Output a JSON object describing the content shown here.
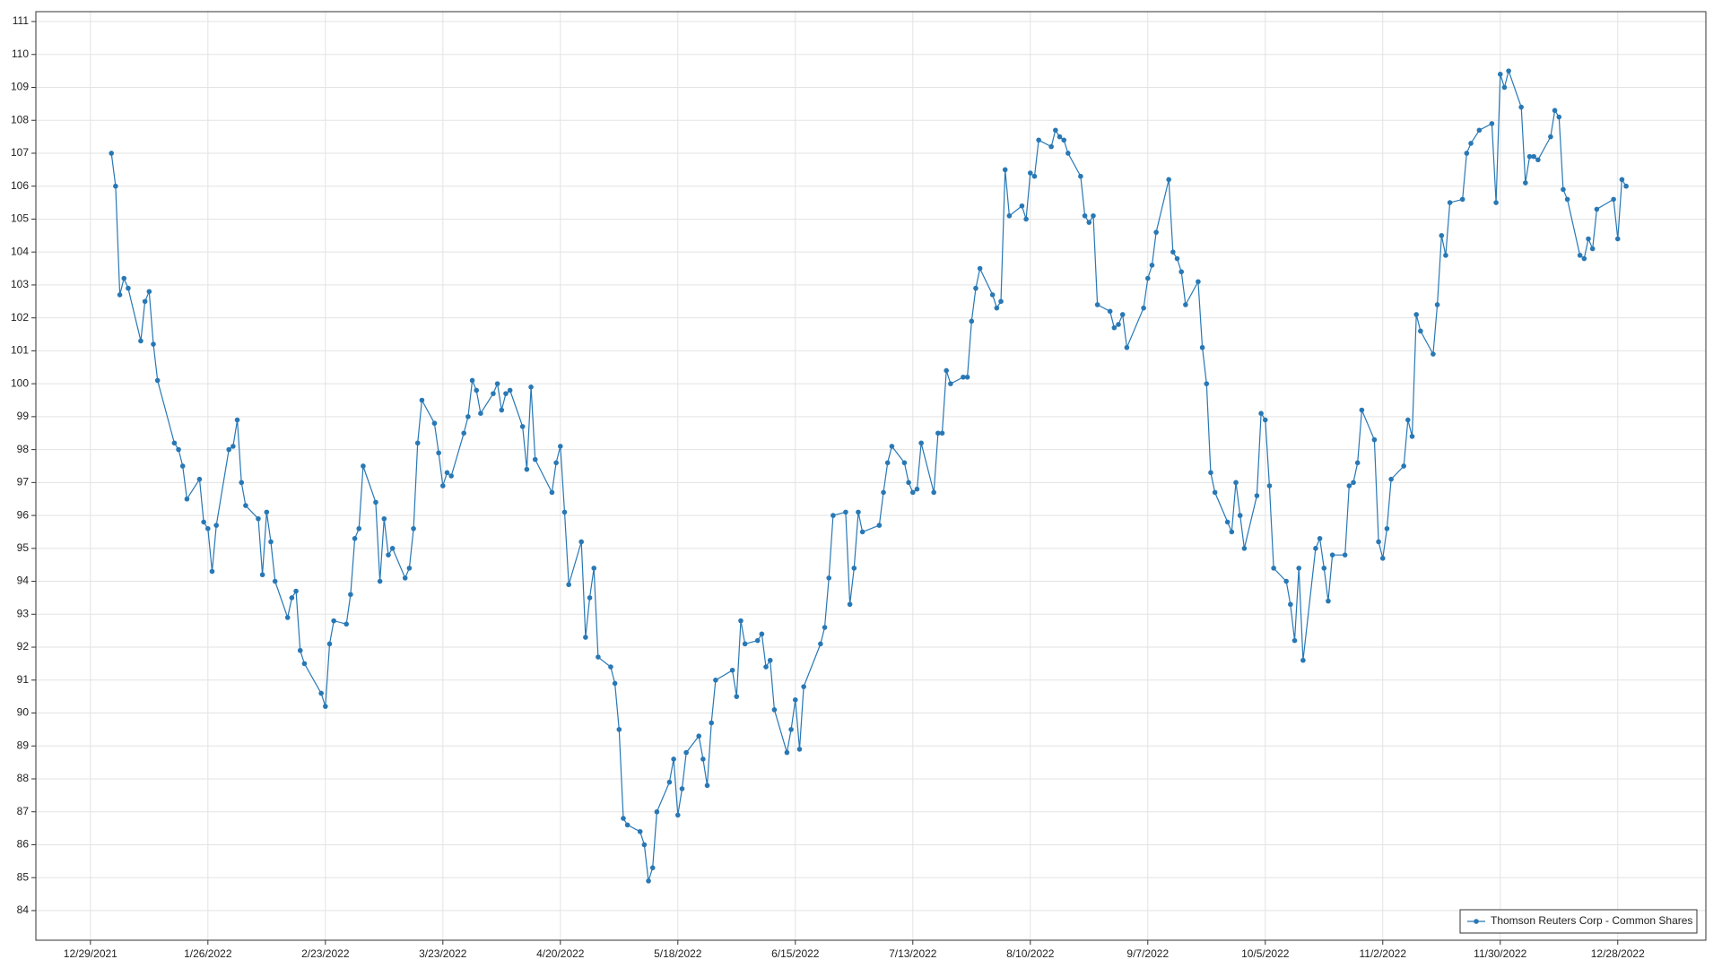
{
  "chart_data": {
    "type": "line",
    "x": [
      "1/3/2022",
      "1/4/2022",
      "1/5/2022",
      "1/6/2022",
      "1/7/2022",
      "1/10/2022",
      "1/11/2022",
      "1/12/2022",
      "1/13/2022",
      "1/14/2022",
      "1/18/2022",
      "1/19/2022",
      "1/20/2022",
      "1/21/2022",
      "1/24/2022",
      "1/25/2022",
      "1/26/2022",
      "1/27/2022",
      "1/28/2022",
      "1/31/2022",
      "2/1/2022",
      "2/2/2022",
      "2/3/2022",
      "2/4/2022",
      "2/7/2022",
      "2/8/2022",
      "2/9/2022",
      "2/10/2022",
      "2/11/2022",
      "2/14/2022",
      "2/15/2022",
      "2/16/2022",
      "2/17/2022",
      "2/18/2022",
      "2/22/2022",
      "2/23/2022",
      "2/24/2022",
      "2/25/2022",
      "2/28/2022",
      "3/1/2022",
      "3/2/2022",
      "3/3/2022",
      "3/4/2022",
      "3/7/2022",
      "3/8/2022",
      "3/9/2022",
      "3/10/2022",
      "3/11/2022",
      "3/14/2022",
      "3/15/2022",
      "3/16/2022",
      "3/17/2022",
      "3/18/2022",
      "3/21/2022",
      "3/22/2022",
      "3/23/2022",
      "3/24/2022",
      "3/25/2022",
      "3/28/2022",
      "3/29/2022",
      "3/30/2022",
      "3/31/2022",
      "4/1/2022",
      "4/4/2022",
      "4/5/2022",
      "4/6/2022",
      "4/7/2022",
      "4/8/2022",
      "4/11/2022",
      "4/12/2022",
      "4/13/2022",
      "4/14/2022",
      "4/18/2022",
      "4/19/2022",
      "4/20/2022",
      "4/21/2022",
      "4/22/2022",
      "4/25/2022",
      "4/26/2022",
      "4/27/2022",
      "4/28/2022",
      "4/29/2022",
      "5/2/2022",
      "5/3/2022",
      "5/4/2022",
      "5/5/2022",
      "5/6/2022",
      "5/9/2022",
      "5/10/2022",
      "5/11/2022",
      "5/12/2022",
      "5/13/2022",
      "5/16/2022",
      "5/17/2022",
      "5/18/2022",
      "5/19/2022",
      "5/20/2022",
      "5/23/2022",
      "5/24/2022",
      "5/25/2022",
      "5/26/2022",
      "5/27/2022",
      "5/31/2022",
      "6/1/2022",
      "6/2/2022",
      "6/3/2022",
      "6/6/2022",
      "6/7/2022",
      "6/8/2022",
      "6/9/2022",
      "6/10/2022",
      "6/13/2022",
      "6/14/2022",
      "6/15/2022",
      "6/16/2022",
      "6/17/2022",
      "6/21/2022",
      "6/22/2022",
      "6/23/2022",
      "6/24/2022",
      "6/27/2022",
      "6/28/2022",
      "6/29/2022",
      "6/30/2022",
      "7/1/2022",
      "7/5/2022",
      "7/6/2022",
      "7/7/2022",
      "7/8/2022",
      "7/11/2022",
      "7/12/2022",
      "7/13/2022",
      "7/14/2022",
      "7/15/2022",
      "7/18/2022",
      "7/19/2022",
      "7/20/2022",
      "7/21/2022",
      "7/22/2022",
      "7/25/2022",
      "7/26/2022",
      "7/27/2022",
      "7/28/2022",
      "7/29/2022",
      "8/1/2022",
      "8/2/2022",
      "8/3/2022",
      "8/4/2022",
      "8/5/2022",
      "8/8/2022",
      "8/9/2022",
      "8/10/2022",
      "8/11/2022",
      "8/12/2022",
      "8/15/2022",
      "8/16/2022",
      "8/17/2022",
      "8/18/2022",
      "8/19/2022",
      "8/22/2022",
      "8/23/2022",
      "8/24/2022",
      "8/25/2022",
      "8/26/2022",
      "8/29/2022",
      "8/30/2022",
      "8/31/2022",
      "9/1/2022",
      "9/2/2022",
      "9/6/2022",
      "9/7/2022",
      "9/8/2022",
      "9/9/2022",
      "9/12/2022",
      "9/13/2022",
      "9/14/2022",
      "9/15/2022",
      "9/16/2022",
      "9/19/2022",
      "9/20/2022",
      "9/21/2022",
      "9/22/2022",
      "9/23/2022",
      "9/26/2022",
      "9/27/2022",
      "9/28/2022",
      "9/29/2022",
      "9/30/2022",
      "10/3/2022",
      "10/4/2022",
      "10/5/2022",
      "10/6/2022",
      "10/7/2022",
      "10/10/2022",
      "10/11/2022",
      "10/12/2022",
      "10/13/2022",
      "10/14/2022",
      "10/17/2022",
      "10/18/2022",
      "10/19/2022",
      "10/20/2022",
      "10/21/2022",
      "10/24/2022",
      "10/25/2022",
      "10/26/2022",
      "10/27/2022",
      "10/28/2022",
      "10/31/2022",
      "11/1/2022",
      "11/2/2022",
      "11/3/2022",
      "11/4/2022",
      "11/7/2022",
      "11/8/2022",
      "11/9/2022",
      "11/10/2022",
      "11/11/2022",
      "11/14/2022",
      "11/15/2022",
      "11/16/2022",
      "11/17/2022",
      "11/18/2022",
      "11/21/2022",
      "11/22/2022",
      "11/23/2022",
      "11/25/2022",
      "11/28/2022",
      "11/29/2022",
      "11/30/2022",
      "12/1/2022",
      "12/2/2022",
      "12/5/2022",
      "12/6/2022",
      "12/7/2022",
      "12/8/2022",
      "12/9/2022",
      "12/12/2022",
      "12/13/2022",
      "12/14/2022",
      "12/15/2022",
      "12/16/2022",
      "12/19/2022",
      "12/20/2022",
      "12/21/2022",
      "12/22/2022",
      "12/23/2022",
      "12/27/2022",
      "12/28/2022",
      "12/29/2022",
      "12/30/2022"
    ],
    "series": [
      {
        "name": "Thomson Reuters Corp - Common Shares",
        "color": "#2878b5",
        "values": [
          107.0,
          106.0,
          102.7,
          103.2,
          102.9,
          101.3,
          102.5,
          102.8,
          101.2,
          100.1,
          98.2,
          98.0,
          97.5,
          96.5,
          97.1,
          95.8,
          95.6,
          94.3,
          95.7,
          98.0,
          98.1,
          98.9,
          97.0,
          96.3,
          95.9,
          94.2,
          96.1,
          95.2,
          94.0,
          92.9,
          93.5,
          93.7,
          91.9,
          91.5,
          90.6,
          90.2,
          92.1,
          92.8,
          92.7,
          93.6,
          95.3,
          95.6,
          97.5,
          96.4,
          94.0,
          95.9,
          94.8,
          95.0,
          94.1,
          94.4,
          95.6,
          98.2,
          99.5,
          98.8,
          97.9,
          96.9,
          97.3,
          97.2,
          98.5,
          99.0,
          100.1,
          99.8,
          99.1,
          99.7,
          100.0,
          99.2,
          99.7,
          99.8,
          98.7,
          97.4,
          99.9,
          97.7,
          96.7,
          97.6,
          98.1,
          96.1,
          93.9,
          95.2,
          92.3,
          93.5,
          94.4,
          91.7,
          91.4,
          90.9,
          89.5,
          86.8,
          86.6,
          86.4,
          86.0,
          84.9,
          85.3,
          87.0,
          87.9,
          88.6,
          86.9,
          87.7,
          88.8,
          89.3,
          88.6,
          87.8,
          89.7,
          91.0,
          91.3,
          90.5,
          92.8,
          92.1,
          92.2,
          92.4,
          91.4,
          91.6,
          90.1,
          88.8,
          89.5,
          90.4,
          88.9,
          90.8,
          92.1,
          92.6,
          94.1,
          96.0,
          96.1,
          93.3,
          94.4,
          96.1,
          95.5,
          95.7,
          96.7,
          97.6,
          98.1,
          97.6,
          97.0,
          96.7,
          96.8,
          98.2,
          96.7,
          98.5,
          98.5,
          100.4,
          100.0,
          100.2,
          100.2,
          101.9,
          102.9,
          103.5,
          102.7,
          102.3,
          102.5,
          106.5,
          105.1,
          105.4,
          105.0,
          106.4,
          106.3,
          107.4,
          107.2,
          107.7,
          107.5,
          107.4,
          107.0,
          106.3,
          105.1,
          104.9,
          105.1,
          102.4,
          102.2,
          101.7,
          101.8,
          102.1,
          101.1,
          102.3,
          103.2,
          103.6,
          104.6,
          106.2,
          104.0,
          103.8,
          103.4,
          102.4,
          103.1,
          101.1,
          100.0,
          97.3,
          96.7,
          95.8,
          95.5,
          97.0,
          96.0,
          95.0,
          96.6,
          99.1,
          98.9,
          96.9,
          94.4,
          94.0,
          93.3,
          92.2,
          94.4,
          91.6,
          95.0,
          95.3,
          94.4,
          93.4,
          94.8,
          94.8,
          96.9,
          97.0,
          97.6,
          99.2,
          98.3,
          95.2,
          94.7,
          95.6,
          97.1,
          97.5,
          98.9,
          98.4,
          102.1,
          101.6,
          100.9,
          102.4,
          104.5,
          103.9,
          105.5,
          105.6,
          107.0,
          107.3,
          107.7,
          107.9,
          105.5,
          109.4,
          109.0,
          109.5,
          108.4,
          106.1,
          106.9,
          106.9,
          106.8,
          107.5,
          108.3,
          108.1,
          105.9,
          105.6,
          103.9,
          103.8,
          104.4,
          104.1,
          105.3,
          105.6,
          104.4,
          106.2,
          106.0
        ]
      }
    ],
    "xlim": [
      "12/16/2021",
      "1/18/2023"
    ],
    "xticks": [
      "12/29/2021",
      "1/26/2022",
      "2/23/2022",
      "3/23/2022",
      "4/20/2022",
      "5/18/2022",
      "6/15/2022",
      "7/13/2022",
      "8/10/2022",
      "9/7/2022",
      "10/5/2022",
      "11/2/2022",
      "11/30/2022",
      "12/28/2022"
    ],
    "ylim": [
      83.1,
      111.3
    ],
    "yticks": [
      84,
      85,
      86,
      87,
      88,
      89,
      90,
      91,
      92,
      93,
      94,
      95,
      96,
      97,
      98,
      99,
      100,
      101,
      102,
      103,
      104,
      105,
      106,
      107,
      108,
      109,
      110,
      111
    ],
    "grid": true,
    "legend": "lower right"
  }
}
